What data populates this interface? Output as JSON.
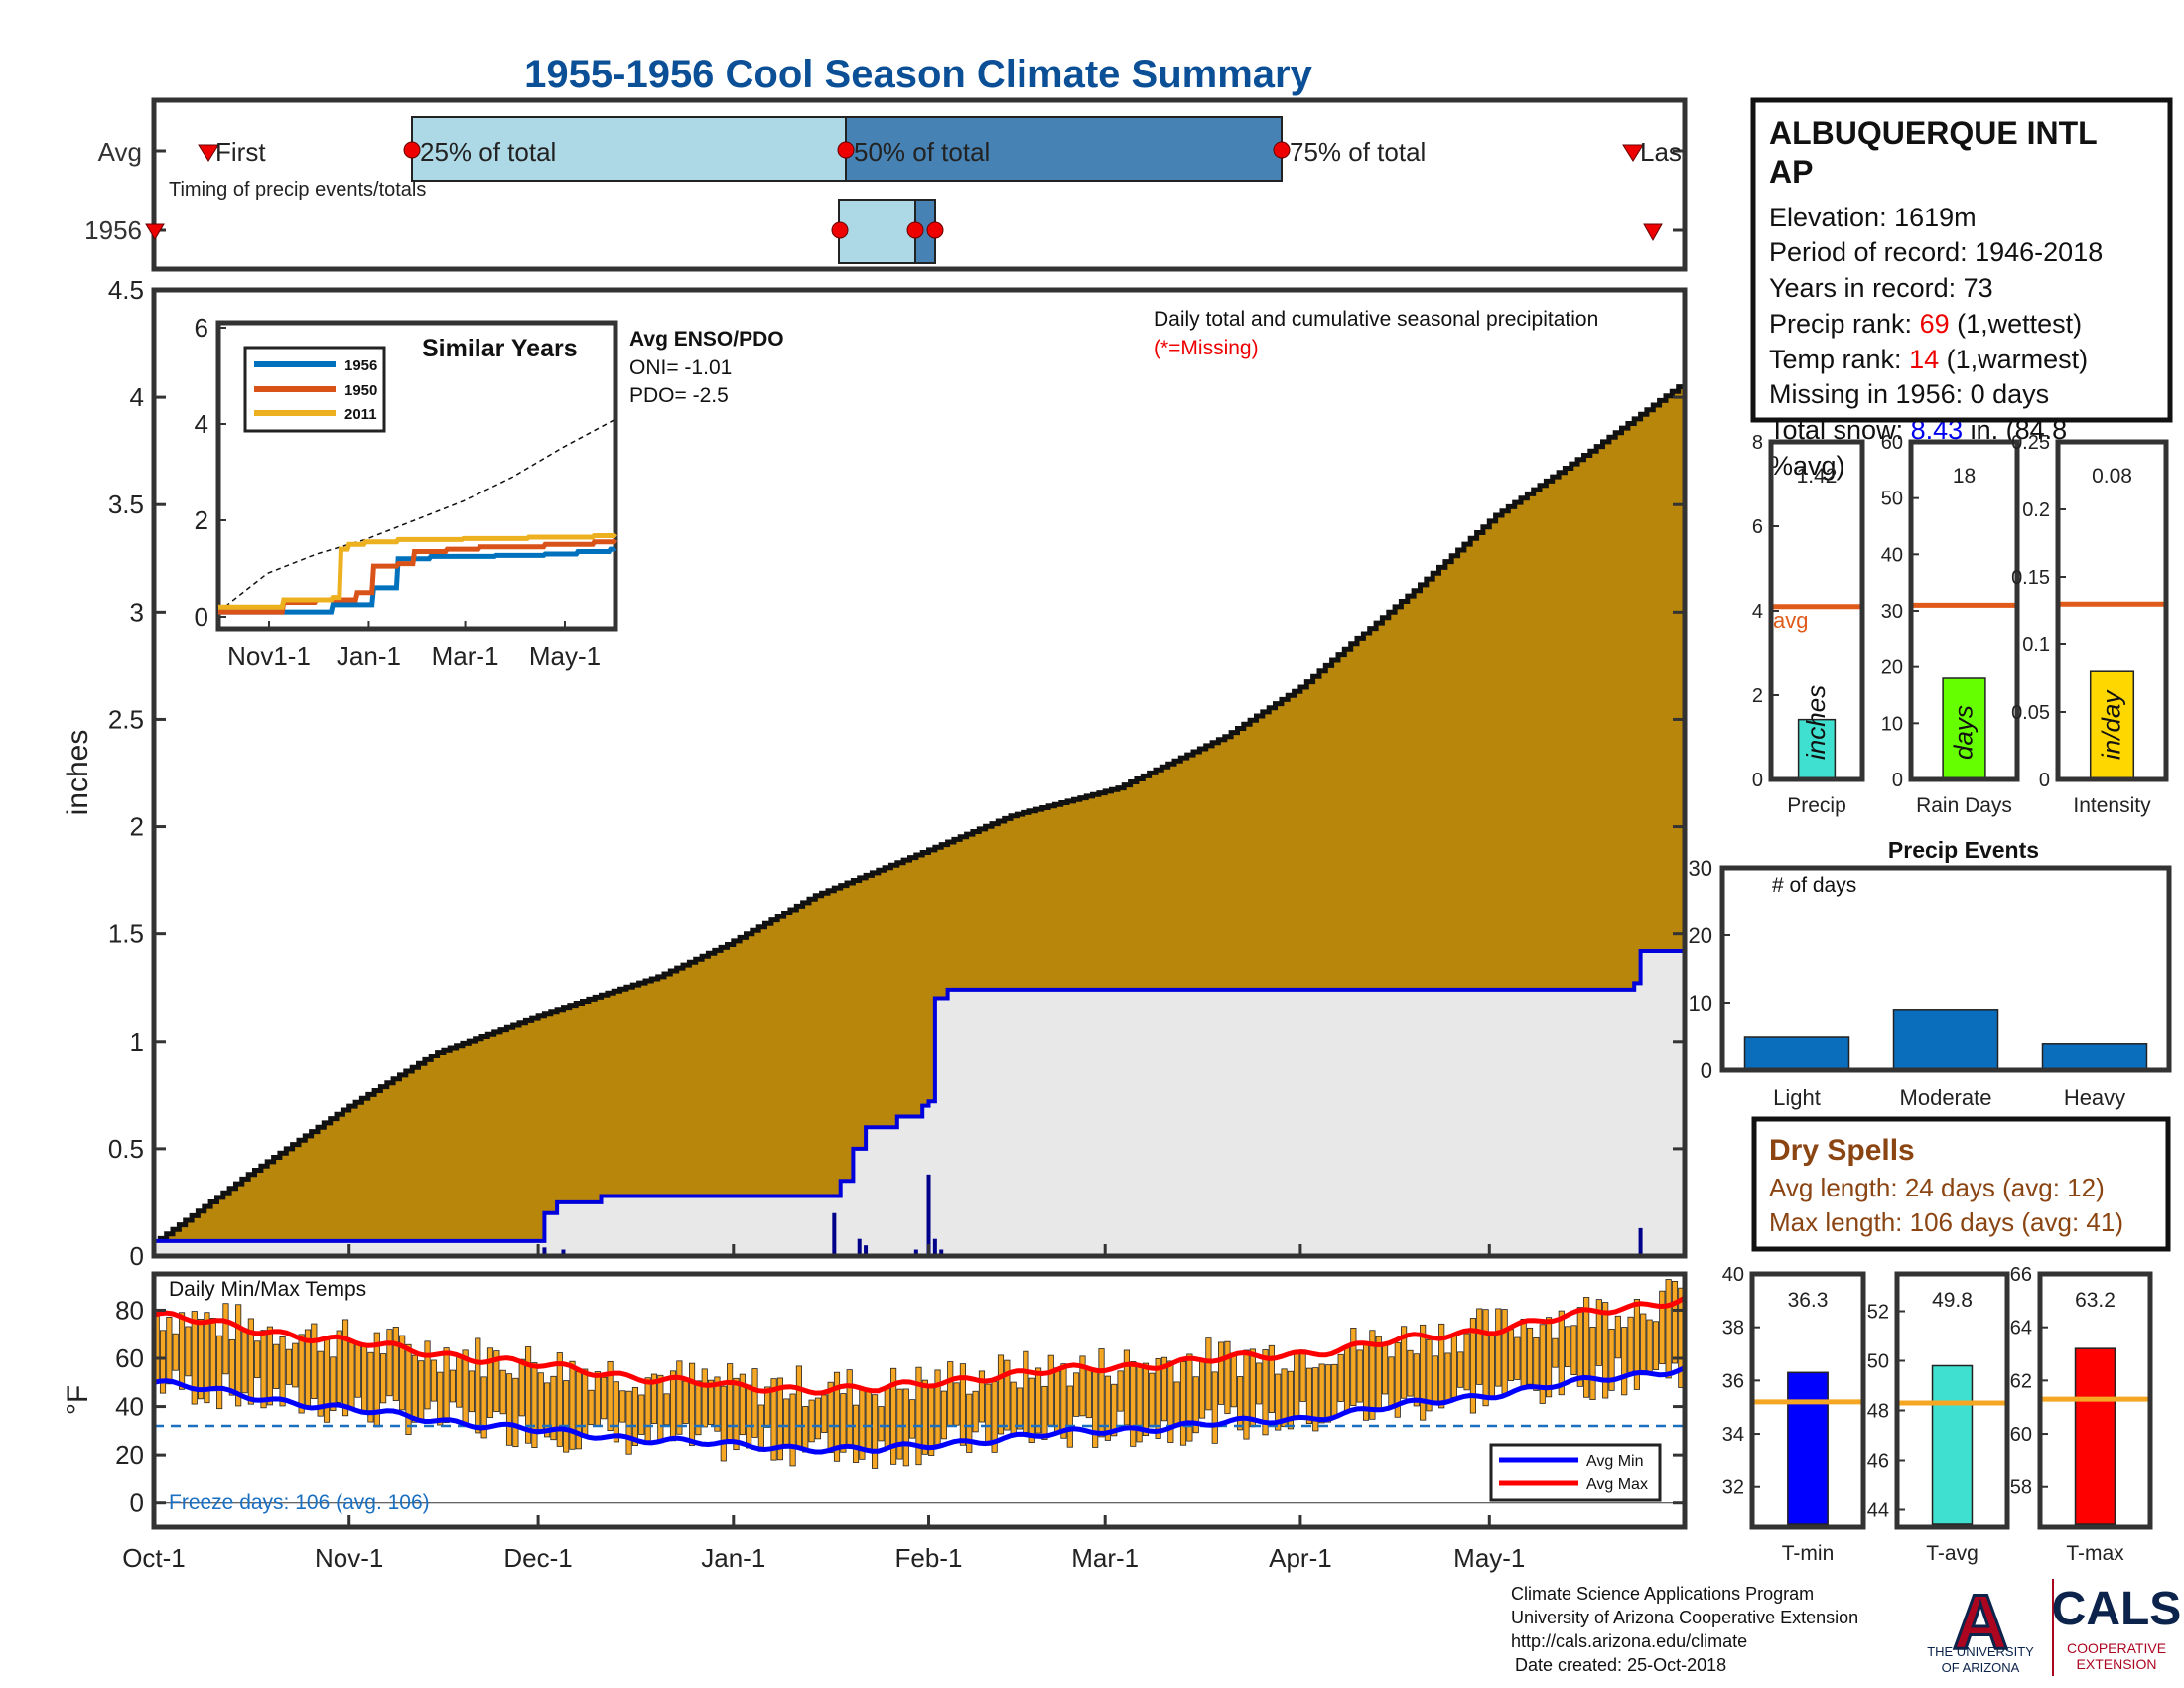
{
  "title": "1955-1956 Cool Season Climate Summary",
  "timing": {
    "rows": [
      "Avg",
      "1956"
    ],
    "caption": "Timing of precip events/totals",
    "avg_labels": {
      "first": "First",
      "p25": "25% of total",
      "p50": "50% of total",
      "p75": "75% of total",
      "last": "Las"
    }
  },
  "station": {
    "name_line1": "ALBUQUERQUE INTL",
    "name_line2": "AP",
    "elevation": "Elevation: 1619m",
    "period": "Period of record: 1946-2018",
    "years": "Years in record: 73",
    "precip_rank_label": "Precip rank: ",
    "precip_rank_value": "69",
    "precip_rank_suffix": " (1,wettest)",
    "temp_rank_label": "Temp rank: ",
    "temp_rank_value": "14",
    "temp_rank_suffix": " (1,warmest)",
    "missing": "Missing in 1956: 0 days",
    "snow_label": "Total snow: ",
    "snow_value": "8.43",
    "snow_suffix": " in. (84.8",
    "snow_suffix2": "%avg)"
  },
  "main_chart": {
    "ylabel": "inches",
    "yticks": [
      "0",
      "0.5",
      "1",
      "1.5",
      "2",
      "2.5",
      "3",
      "3.5",
      "4",
      "4.5"
    ],
    "xticks": [
      "Oct-1",
      "Nov-1",
      "Dec-1",
      "Jan-1",
      "Feb-1",
      "Mar-1",
      "Apr-1",
      "May-1"
    ],
    "note1": "Daily total and cumulative seasonal precipitation",
    "note2": "(*=Missing)",
    "enso_title": "Avg ENSO/PDO",
    "oni": "ONI= -1.01",
    "pdo": "PDO= -2.5"
  },
  "inset": {
    "title": "Similar Years",
    "yticks": [
      "0",
      "2",
      "4",
      "6"
    ],
    "xticks": [
      "Nov1-1",
      "Jan-1",
      "Mar-1",
      "May-1"
    ],
    "legend": [
      "1956",
      "1950",
      "2011"
    ]
  },
  "summary_bars": {
    "precip": {
      "label": "Precip",
      "unit": "inches",
      "value_text": "1.42",
      "avg_label": "avg",
      "yticks": [
        "0",
        "2",
        "4",
        "6",
        "8"
      ]
    },
    "rain_days": {
      "label": "Rain Days",
      "unit": "days",
      "value_text": "18",
      "yticks": [
        "0",
        "10",
        "20",
        "30",
        "40",
        "50",
        "60"
      ]
    },
    "intensity": {
      "label": "Intensity",
      "unit": "in/day",
      "value_text": "0.08",
      "yticks": [
        "0",
        "0.05",
        "0.1",
        "0.15",
        "0.2",
        "0.25"
      ]
    }
  },
  "precip_events": {
    "title": "Precip Events",
    "ylabel": "# of days",
    "categories": [
      "Light",
      "Moderate",
      "Heavy"
    ],
    "yticks": [
      "0",
      "10",
      "20",
      "30"
    ]
  },
  "dry_spells": {
    "title": "Dry Spells",
    "avg_length": "Avg length: 24 days (avg: 12)",
    "max_length": "Max length: 106 days (avg: 41)"
  },
  "temp_chart": {
    "title": "Daily Min/Max Temps",
    "ylabel": "°F",
    "yticks": [
      "0",
      "20",
      "40",
      "60",
      "80"
    ],
    "freeze": "Freeze days: 106 (avg. 106)",
    "legend": [
      "Avg Min",
      "Avg Max"
    ]
  },
  "temp_bars": {
    "tmin": {
      "label": "T-min",
      "value_text": "36.3",
      "yticks": [
        "32",
        "34",
        "36",
        "38",
        "40"
      ]
    },
    "tavg": {
      "label": "T-avg",
      "value_text": "49.8",
      "yticks": [
        "44",
        "46",
        "48",
        "50",
        "52"
      ]
    },
    "tmax": {
      "label": "T-max",
      "value_text": "63.2",
      "yticks": [
        "58",
        "60",
        "62",
        "64",
        "66"
      ]
    }
  },
  "footer": {
    "line1": "Climate Science Applications Program",
    "line2": "University of Arizona Cooperative Extension",
    "line3": "http://cals.arizona.edu/climate",
    "line4": "Date created: 25-Oct-2018",
    "ua_logo_letter": "A",
    "ua_logo_text1": "THE UNIVERSITY",
    "ua_logo_text2": "OF ARIZONA",
    "cals_logo": "CALS",
    "cals_sub1": "COOPERATIVE",
    "cals_sub2": "EXTENSION"
  },
  "colors": {
    "title": "#0b4f96",
    "cumulative_fill": "#b8860b",
    "avg_fill": "#e8e8e8",
    "season_line": "#0000dd",
    "light_blue": "#add8e6",
    "steel_blue": "#4682b4",
    "red_marker": "#ee0000",
    "orange_avg": "#e05a1a",
    "events_bar": "#0a6ebd",
    "dry_spell_text": "#8b4513",
    "temp_bar": "#f5a623",
    "tmin": "#0000ff",
    "tavg": "#40e0d0",
    "tmax": "#ff0000",
    "precip_bar": "#40e0d0",
    "raindays_bar": "#66ff00",
    "intensity_bar": "#ffd700"
  },
  "chart_data": [
    {
      "type": "line",
      "name": "main-precip",
      "x_range_days": [
        0,
        243
      ],
      "ylim": [
        0,
        4.5
      ],
      "avg_cumulative_series": {
        "x": [
          0,
          15,
          30,
          45,
          61,
          80,
          91,
          105,
          122,
          136,
          153,
          170,
          182,
          200,
          213,
          228,
          243
        ],
        "y": [
          0.06,
          0.38,
          0.68,
          0.95,
          1.12,
          1.3,
          1.45,
          1.68,
          1.88,
          2.05,
          2.18,
          2.42,
          2.65,
          3.1,
          3.45,
          3.75,
          4.07
        ]
      },
      "season_cumulative_series": {
        "x": [
          0,
          61,
          61.5,
          64,
          71,
          108,
          109,
          111,
          113,
          118,
          120,
          122,
          123,
          124,
          126,
          213,
          232,
          235,
          236,
          243
        ],
        "y": [
          0.07,
          0.07,
          0.2,
          0.25,
          0.28,
          0.28,
          0.35,
          0.5,
          0.6,
          0.65,
          0.65,
          0.7,
          0.72,
          1.2,
          1.24,
          1.24,
          1.24,
          1.27,
          1.42,
          1.42
        ]
      },
      "daily_precip_spikes": {
        "x": [
          62,
          65,
          108,
          112,
          113,
          121,
          123,
          124,
          125,
          236
        ],
        "y": [
          0.04,
          0.03,
          0.2,
          0.08,
          0.05,
          0.03,
          0.38,
          0.08,
          0.03,
          0.13
        ]
      }
    },
    {
      "type": "bar",
      "name": "precip-events",
      "categories": [
        "Light",
        "Moderate",
        "Heavy"
      ],
      "values": [
        5,
        9,
        4
      ],
      "ylim": [
        0,
        30
      ]
    },
    {
      "type": "bar",
      "name": "season-summary",
      "categories": [
        "Precip",
        "Rain Days",
        "Intensity"
      ],
      "values": [
        1.42,
        18,
        0.08
      ],
      "averages": [
        4.1,
        31,
        0.13
      ]
    },
    {
      "type": "bar",
      "name": "temp-summary",
      "categories": [
        "T-min",
        "T-avg",
        "T-max"
      ],
      "values": [
        36.3,
        49.8,
        63.2
      ],
      "averages": [
        35.2,
        48.3,
        61.3
      ]
    },
    {
      "type": "line",
      "name": "similar-years",
      "x_range_days": [
        0,
        243
      ],
      "ylim": [
        0,
        6
      ],
      "series": [
        {
          "name": "1956",
          "x": [
            0,
            60,
            70,
            80,
            95,
            110,
            130,
            150,
            170,
            200,
            220,
            240,
            243
          ],
          "y": [
            0.1,
            0.1,
            0.25,
            0.25,
            0.6,
            1.2,
            1.25,
            1.25,
            1.27,
            1.3,
            1.35,
            1.4,
            1.42
          ]
        },
        {
          "name": "1950",
          "x": [
            0,
            40,
            60,
            85,
            95,
            110,
            120,
            140,
            160,
            200,
            230,
            243
          ],
          "y": [
            0.1,
            0.3,
            0.35,
            0.5,
            1.05,
            1.1,
            1.35,
            1.4,
            1.45,
            1.5,
            1.55,
            1.6
          ]
        },
        {
          "name": "2011",
          "x": [
            0,
            40,
            70,
            75,
            80,
            90,
            110,
            150,
            190,
            230,
            243
          ],
          "y": [
            0.2,
            0.35,
            0.4,
            1.4,
            1.5,
            1.55,
            1.6,
            1.62,
            1.65,
            1.68,
            1.72
          ]
        }
      ],
      "avg_line": {
        "x": [
          0,
          30,
          60,
          90,
          120,
          150,
          180,
          210,
          243
        ],
        "y": [
          0.1,
          0.9,
          1.3,
          1.6,
          2.0,
          2.4,
          2.9,
          3.5,
          4.1
        ]
      }
    },
    {
      "type": "line",
      "name": "daily-temps",
      "x_range_days": [
        0,
        243
      ],
      "ylim": [
        -10,
        95
      ],
      "avg_max": {
        "x": [
          0,
          30,
          61,
          92,
          115,
          130,
          150,
          182,
          212,
          243
        ],
        "y": [
          78,
          67,
          57,
          48,
          47,
          52,
          56,
          62,
          72,
          85
        ]
      },
      "avg_min": {
        "x": [
          0,
          30,
          61,
          92,
          115,
          130,
          150,
          182,
          212,
          243
        ],
        "y": [
          50,
          39,
          30,
          24,
          22,
          26,
          30,
          35,
          45,
          56
        ]
      },
      "freeze_line": 32
    }
  ]
}
